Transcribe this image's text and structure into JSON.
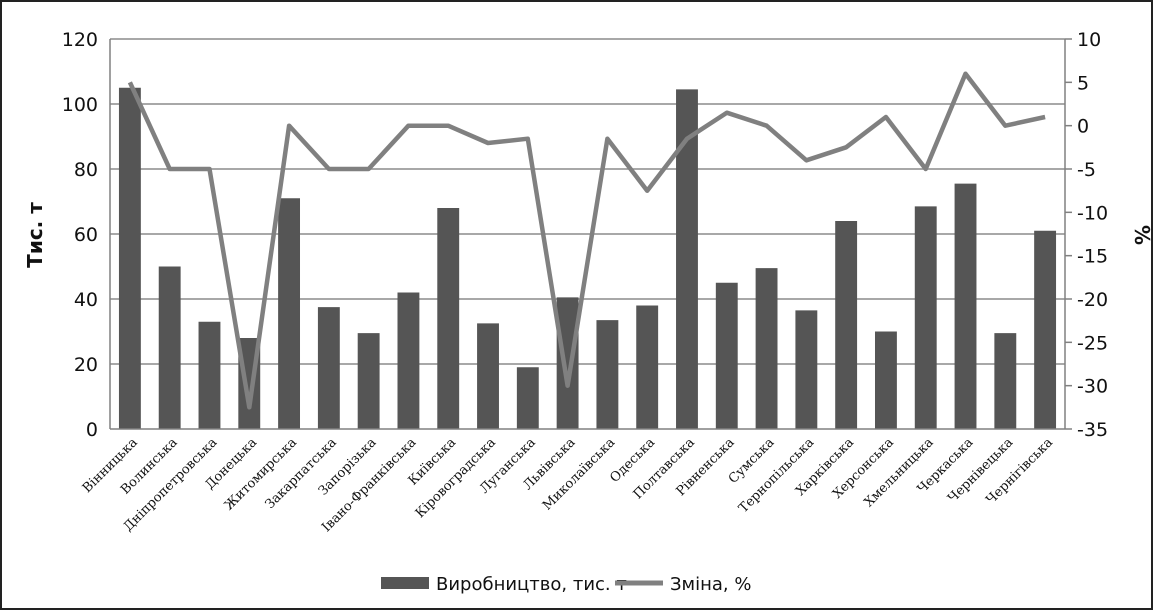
{
  "chart_data": {
    "type": "bar",
    "title": "",
    "categories": [
      "Вінницька",
      "Волинська",
      "Дніпропетровська",
      "Донецька",
      "Житомирська",
      "Закарпатська",
      "Запорізька",
      "Івано-Франківська",
      "Київська",
      "Кіровоградська",
      "Луганська",
      "Львівська",
      "Миколаївська",
      "Одеська",
      "Полтавська",
      "Рівненська",
      "Сумська",
      "Тернопільська",
      "Харківська",
      "Херсонська",
      "Хмельницька",
      "Черкаська",
      "Чернівецька",
      "Чернігівська"
    ],
    "ylabel": "Тис. т",
    "y2label": "%",
    "ylim": [
      0,
      120
    ],
    "y2lim": [
      -35,
      10
    ],
    "yticks": [
      "0",
      "20",
      "40",
      "60",
      "80",
      "100",
      "120"
    ],
    "y2ticks": [
      "-35",
      "-30",
      "-25",
      "-20",
      "-15",
      "-10",
      "-5",
      "0",
      "5",
      "10"
    ],
    "grid": true,
    "legend_position": "bottom",
    "series": [
      {
        "name": "Виробництво, тис. т",
        "type": "bar",
        "axis": "left",
        "color": "#555555",
        "values": [
          105,
          50,
          33,
          28,
          71,
          37.5,
          29.5,
          42,
          68,
          32.5,
          19,
          40.5,
          33.5,
          38,
          104.5,
          45,
          49.5,
          36.5,
          64,
          30,
          68.5,
          75.5,
          29.5,
          61
        ]
      },
      {
        "name": "Зміна, %",
        "type": "line",
        "axis": "right",
        "color": "#808080",
        "values": [
          5,
          -5,
          -5,
          -32.5,
          0,
          -5,
          -5,
          0,
          0,
          -2,
          -1.5,
          -30,
          -1.5,
          -7.5,
          -1.5,
          1.5,
          0,
          -4,
          -2.5,
          1,
          -5,
          6,
          0,
          1
        ]
      }
    ]
  }
}
